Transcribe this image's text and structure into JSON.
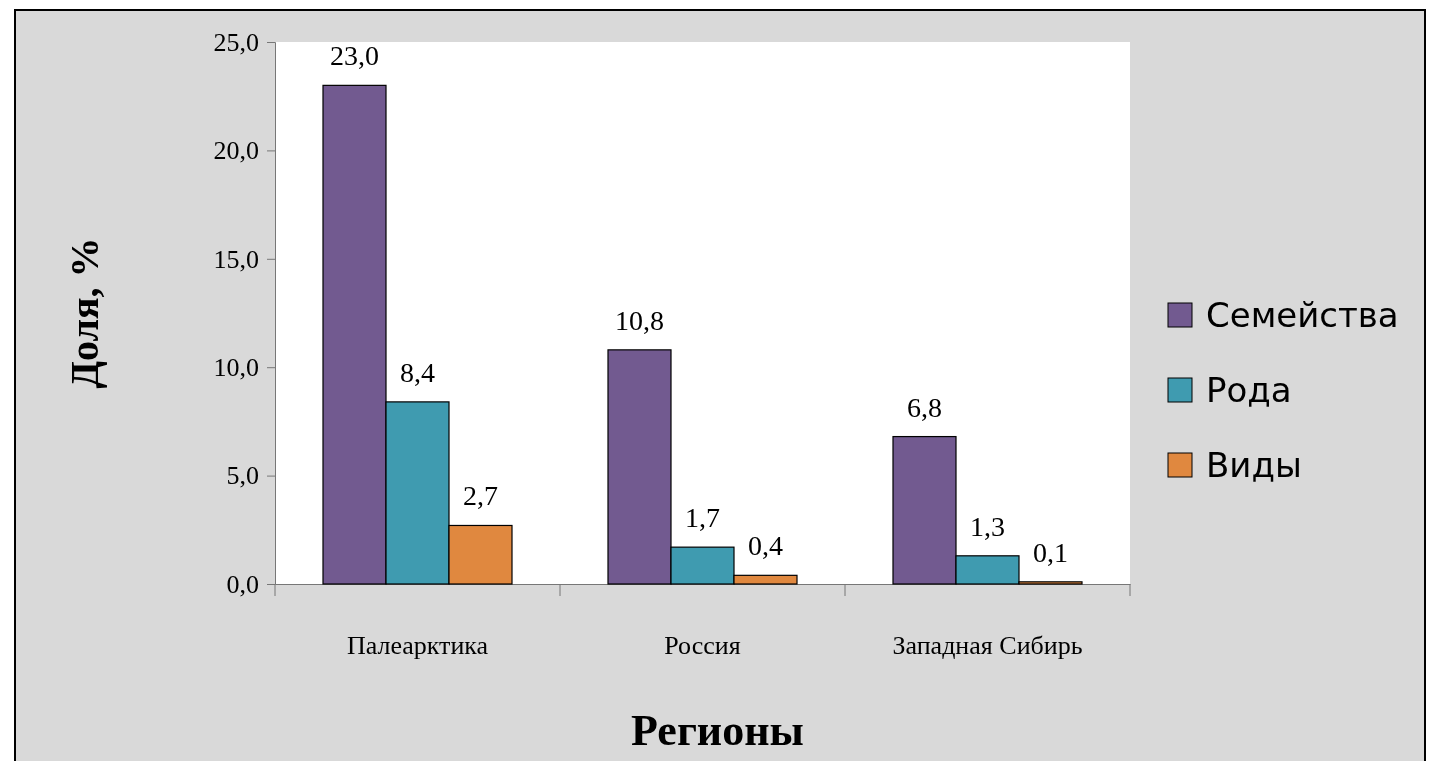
{
  "chart_data": {
    "type": "bar",
    "xlabel": "Регионы",
    "ylabel": "Доля, %",
    "categories": [
      "Палеарктика",
      "Россия",
      "Западная Сибирь"
    ],
    "series": [
      {
        "name": "Семейства",
        "color": "#725a90",
        "values": [
          23.0,
          10.8,
          6.8
        ],
        "value_labels": [
          "23,0",
          "10,8",
          "6,8"
        ]
      },
      {
        "name": "Рода",
        "color": "#3f9bb0",
        "values": [
          8.4,
          1.7,
          1.3
        ],
        "value_labels": [
          "8,4",
          "1,7",
          "1,3"
        ]
      },
      {
        "name": "Виды",
        "color": "#e0883f",
        "values": [
          2.7,
          0.4,
          0.1
        ],
        "value_labels": [
          "2,7",
          "0,4",
          "0,1"
        ]
      }
    ],
    "ylim": [
      0,
      25
    ],
    "yticks": [
      {
        "value": 0,
        "label": "0,0"
      },
      {
        "value": 5,
        "label": "5,0"
      },
      {
        "value": 10,
        "label": "10,0"
      },
      {
        "value": 15,
        "label": "15,0"
      },
      {
        "value": 20,
        "label": "20,0"
      },
      {
        "value": 25,
        "label": "25,0"
      }
    ],
    "grid": false,
    "legend": "right"
  }
}
